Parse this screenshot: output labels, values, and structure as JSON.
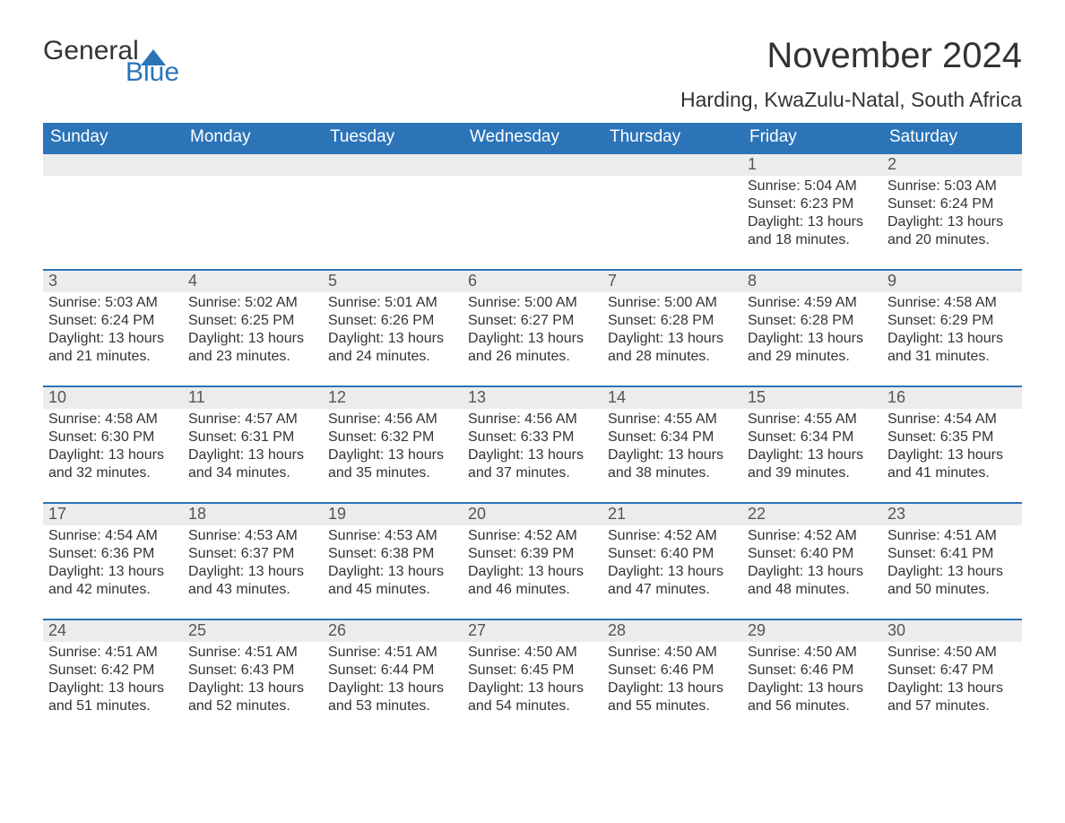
{
  "logo": {
    "word1": "General",
    "word2": "Blue",
    "sail_color": "#2b74b8"
  },
  "title": "November 2024",
  "location": "Harding, KwaZulu-Natal, South Africa",
  "colors": {
    "header_bg": "#2b74b8",
    "header_fg": "#ffffff",
    "daynum_bg": "#ececec",
    "daynum_fg": "#555555",
    "text": "#333333",
    "row_separator": "#2b74b8",
    "page_bg": "#ffffff"
  },
  "type": "calendar-table",
  "columns": [
    "Sunday",
    "Monday",
    "Tuesday",
    "Wednesday",
    "Thursday",
    "Friday",
    "Saturday"
  ],
  "column_fontsize": 19,
  "cell_fontsize": 16,
  "daynum_fontsize": 18,
  "title_fontsize": 40,
  "location_fontsize": 23,
  "weeks": [
    [
      null,
      null,
      null,
      null,
      null,
      {
        "n": 1,
        "sunrise": "5:04 AM",
        "sunset": "6:23 PM",
        "daylight": "13 hours and 18 minutes."
      },
      {
        "n": 2,
        "sunrise": "5:03 AM",
        "sunset": "6:24 PM",
        "daylight": "13 hours and 20 minutes."
      }
    ],
    [
      {
        "n": 3,
        "sunrise": "5:03 AM",
        "sunset": "6:24 PM",
        "daylight": "13 hours and 21 minutes."
      },
      {
        "n": 4,
        "sunrise": "5:02 AM",
        "sunset": "6:25 PM",
        "daylight": "13 hours and 23 minutes."
      },
      {
        "n": 5,
        "sunrise": "5:01 AM",
        "sunset": "6:26 PM",
        "daylight": "13 hours and 24 minutes."
      },
      {
        "n": 6,
        "sunrise": "5:00 AM",
        "sunset": "6:27 PM",
        "daylight": "13 hours and 26 minutes."
      },
      {
        "n": 7,
        "sunrise": "5:00 AM",
        "sunset": "6:28 PM",
        "daylight": "13 hours and 28 minutes."
      },
      {
        "n": 8,
        "sunrise": "4:59 AM",
        "sunset": "6:28 PM",
        "daylight": "13 hours and 29 minutes."
      },
      {
        "n": 9,
        "sunrise": "4:58 AM",
        "sunset": "6:29 PM",
        "daylight": "13 hours and 31 minutes."
      }
    ],
    [
      {
        "n": 10,
        "sunrise": "4:58 AM",
        "sunset": "6:30 PM",
        "daylight": "13 hours and 32 minutes."
      },
      {
        "n": 11,
        "sunrise": "4:57 AM",
        "sunset": "6:31 PM",
        "daylight": "13 hours and 34 minutes."
      },
      {
        "n": 12,
        "sunrise": "4:56 AM",
        "sunset": "6:32 PM",
        "daylight": "13 hours and 35 minutes."
      },
      {
        "n": 13,
        "sunrise": "4:56 AM",
        "sunset": "6:33 PM",
        "daylight": "13 hours and 37 minutes."
      },
      {
        "n": 14,
        "sunrise": "4:55 AM",
        "sunset": "6:34 PM",
        "daylight": "13 hours and 38 minutes."
      },
      {
        "n": 15,
        "sunrise": "4:55 AM",
        "sunset": "6:34 PM",
        "daylight": "13 hours and 39 minutes."
      },
      {
        "n": 16,
        "sunrise": "4:54 AM",
        "sunset": "6:35 PM",
        "daylight": "13 hours and 41 minutes."
      }
    ],
    [
      {
        "n": 17,
        "sunrise": "4:54 AM",
        "sunset": "6:36 PM",
        "daylight": "13 hours and 42 minutes."
      },
      {
        "n": 18,
        "sunrise": "4:53 AM",
        "sunset": "6:37 PM",
        "daylight": "13 hours and 43 minutes."
      },
      {
        "n": 19,
        "sunrise": "4:53 AM",
        "sunset": "6:38 PM",
        "daylight": "13 hours and 45 minutes."
      },
      {
        "n": 20,
        "sunrise": "4:52 AM",
        "sunset": "6:39 PM",
        "daylight": "13 hours and 46 minutes."
      },
      {
        "n": 21,
        "sunrise": "4:52 AM",
        "sunset": "6:40 PM",
        "daylight": "13 hours and 47 minutes."
      },
      {
        "n": 22,
        "sunrise": "4:52 AM",
        "sunset": "6:40 PM",
        "daylight": "13 hours and 48 minutes."
      },
      {
        "n": 23,
        "sunrise": "4:51 AM",
        "sunset": "6:41 PM",
        "daylight": "13 hours and 50 minutes."
      }
    ],
    [
      {
        "n": 24,
        "sunrise": "4:51 AM",
        "sunset": "6:42 PM",
        "daylight": "13 hours and 51 minutes."
      },
      {
        "n": 25,
        "sunrise": "4:51 AM",
        "sunset": "6:43 PM",
        "daylight": "13 hours and 52 minutes."
      },
      {
        "n": 26,
        "sunrise": "4:51 AM",
        "sunset": "6:44 PM",
        "daylight": "13 hours and 53 minutes."
      },
      {
        "n": 27,
        "sunrise": "4:50 AM",
        "sunset": "6:45 PM",
        "daylight": "13 hours and 54 minutes."
      },
      {
        "n": 28,
        "sunrise": "4:50 AM",
        "sunset": "6:46 PM",
        "daylight": "13 hours and 55 minutes."
      },
      {
        "n": 29,
        "sunrise": "4:50 AM",
        "sunset": "6:46 PM",
        "daylight": "13 hours and 56 minutes."
      },
      {
        "n": 30,
        "sunrise": "4:50 AM",
        "sunset": "6:47 PM",
        "daylight": "13 hours and 57 minutes."
      }
    ]
  ],
  "labels": {
    "sunrise": "Sunrise: ",
    "sunset": "Sunset: ",
    "daylight": "Daylight: "
  }
}
